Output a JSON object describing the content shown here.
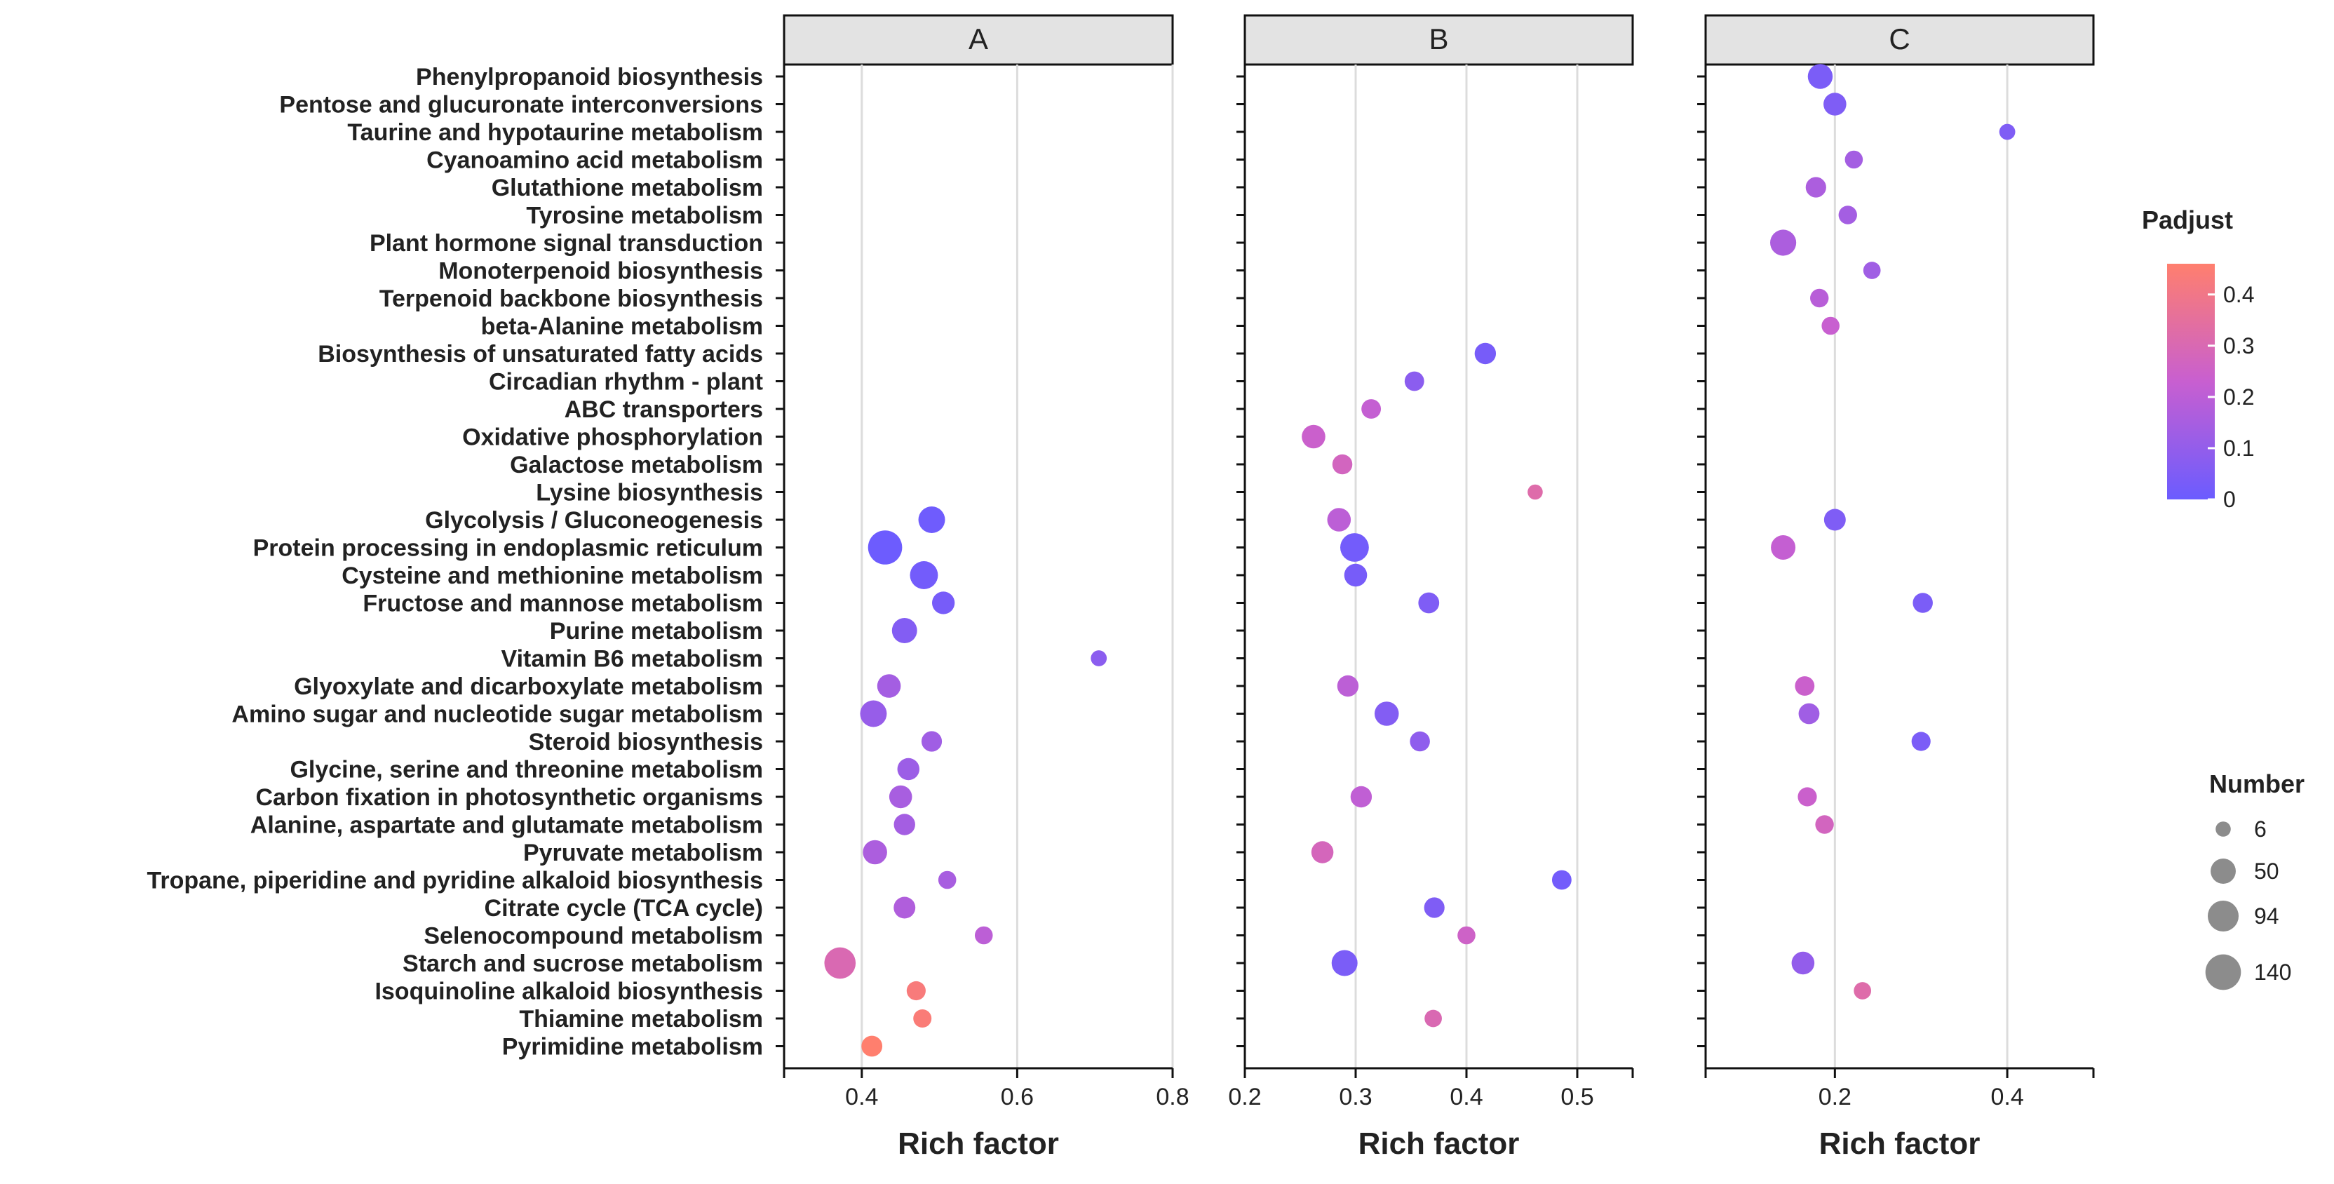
{
  "chart_data": {
    "type": "scatter",
    "pathways": [
      "Phenylpropanoid biosynthesis",
      "Pentose and glucuronate interconversions",
      "Taurine and hypotaurine metabolism",
      "Cyanoamino acid metabolism",
      "Glutathione metabolism",
      "Tyrosine metabolism",
      "Plant hormone signal transduction",
      "Monoterpenoid biosynthesis",
      "Terpenoid backbone biosynthesis",
      "beta-Alanine metabolism",
      "Biosynthesis of unsaturated fatty acids",
      "Circadian rhythm - plant",
      "ABC transporters",
      "Oxidative phosphorylation",
      "Galactose metabolism",
      "Lysine biosynthesis",
      "Glycolysis / Gluconeogenesis",
      "Protein processing in endoplasmic reticulum",
      "Cysteine and methionine metabolism",
      "Fructose and mannose metabolism",
      "Purine metabolism",
      "Vitamin B6 metabolism",
      "Glyoxylate and dicarboxylate metabolism",
      "Amino sugar and nucleotide sugar metabolism",
      "Steroid biosynthesis",
      "Glycine, serine and threonine metabolism",
      "Carbon fixation in photosynthetic organisms",
      "Alanine, aspartate and glutamate metabolism",
      "Pyruvate metabolism",
      "Tropane, piperidine and pyridine alkaloid biosynthesis",
      "Citrate cycle (TCA cycle)",
      "Selenocompound metabolism",
      "Starch and sucrose metabolism",
      "Isoquinoline alkaloid biosynthesis",
      "Thiamine metabolism",
      "Pyrimidine metabolism"
    ],
    "panels": [
      {
        "label": "A",
        "xlabel": "Rich factor",
        "xlim": [
          0.3,
          0.8
        ],
        "ticks": [
          0.4,
          0.6,
          0.8
        ],
        "tick_labels": [
          "0.4",
          "0.6",
          "0.8"
        ],
        "points": [
          {
            "pathway": "Glycolysis / Gluconeogenesis",
            "x": 0.49,
            "number": 60,
            "padjust": 0.01
          },
          {
            "pathway": "Protein processing in endoplasmic reticulum",
            "x": 0.43,
            "number": 125,
            "padjust": 0.005
          },
          {
            "pathway": "Cysteine and methionine metabolism",
            "x": 0.48,
            "number": 70,
            "padjust": 0.02
          },
          {
            "pathway": "Fructose and mannose metabolism",
            "x": 0.505,
            "number": 35,
            "padjust": 0.03
          },
          {
            "pathway": "Purine metabolism",
            "x": 0.455,
            "number": 50,
            "padjust": 0.06
          },
          {
            "pathway": "Vitamin B6 metabolism",
            "x": 0.705,
            "number": 8,
            "padjust": 0.08
          },
          {
            "pathway": "Glyoxylate and dicarboxylate metabolism",
            "x": 0.435,
            "number": 40,
            "padjust": 0.14
          },
          {
            "pathway": "Amino sugar and nucleotide sugar metabolism",
            "x": 0.415,
            "number": 60,
            "padjust": 0.11
          },
          {
            "pathway": "Steroid biosynthesis",
            "x": 0.49,
            "number": 24,
            "padjust": 0.13
          },
          {
            "pathway": "Glycine, serine and threonine metabolism",
            "x": 0.46,
            "number": 32,
            "padjust": 0.12
          },
          {
            "pathway": "Carbon fixation in photosynthetic organisms",
            "x": 0.45,
            "number": 36,
            "padjust": 0.15
          },
          {
            "pathway": "Alanine, aspartate and glutamate metabolism",
            "x": 0.455,
            "number": 28,
            "padjust": 0.14
          },
          {
            "pathway": "Pyruvate metabolism",
            "x": 0.417,
            "number": 44,
            "padjust": 0.16
          },
          {
            "pathway": "Tropane, piperidine and pyridine alkaloid biosynthesis",
            "x": 0.51,
            "number": 14,
            "padjust": 0.15
          },
          {
            "pathway": "Citrate cycle (TCA cycle)",
            "x": 0.455,
            "number": 30,
            "padjust": 0.17
          },
          {
            "pathway": "Selenocompound metabolism",
            "x": 0.557,
            "number": 14,
            "padjust": 0.2
          },
          {
            "pathway": "Starch and sucrose metabolism",
            "x": 0.372,
            "number": 98,
            "padjust": 0.3
          },
          {
            "pathway": "Isoquinoline alkaloid biosynthesis",
            "x": 0.47,
            "number": 18,
            "padjust": 0.43
          },
          {
            "pathway": "Thiamine metabolism",
            "x": 0.478,
            "number": 15,
            "padjust": 0.44
          },
          {
            "pathway": "Pyrimidine metabolism",
            "x": 0.413,
            "number": 26,
            "padjust": 0.46
          }
        ]
      },
      {
        "label": "B",
        "xlabel": "Rich factor",
        "xlim": [
          0.2,
          0.55
        ],
        "ticks": [
          0.2,
          0.3,
          0.4,
          0.5
        ],
        "tick_labels": [
          "0.2",
          "0.3",
          "0.4",
          "0.5"
        ],
        "points": [
          {
            "pathway": "Biosynthesis of unsaturated fatty acids",
            "x": 0.417,
            "number": 28,
            "padjust": 0.03
          },
          {
            "pathway": "Circadian rhythm - plant",
            "x": 0.353,
            "number": 20,
            "padjust": 0.08
          },
          {
            "pathway": "ABC transporters",
            "x": 0.314,
            "number": 20,
            "padjust": 0.22
          },
          {
            "pathway": "Oxidative phosphorylation",
            "x": 0.262,
            "number": 40,
            "padjust": 0.24
          },
          {
            "pathway": "Galactose metabolism",
            "x": 0.288,
            "number": 22,
            "padjust": 0.27
          },
          {
            "pathway": "Lysine biosynthesis",
            "x": 0.462,
            "number": 6,
            "padjust": 0.32
          },
          {
            "pathway": "Glycolysis / Gluconeogenesis",
            "x": 0.285,
            "number": 40,
            "padjust": 0.2
          },
          {
            "pathway": "Protein processing in endoplasmic reticulum",
            "x": 0.299,
            "number": 75,
            "padjust": 0.02
          },
          {
            "pathway": "Cysteine and methionine metabolism",
            "x": 0.3,
            "number": 36,
            "padjust": 0.03
          },
          {
            "pathway": "Fructose and mannose metabolism",
            "x": 0.366,
            "number": 26,
            "padjust": 0.05
          },
          {
            "pathway": "Glyoxylate and dicarboxylate metabolism",
            "x": 0.293,
            "number": 28,
            "padjust": 0.2
          },
          {
            "pathway": "Amino sugar and nucleotide sugar metabolism",
            "x": 0.328,
            "number": 44,
            "padjust": 0.06
          },
          {
            "pathway": "Steroid biosynthesis",
            "x": 0.358,
            "number": 22,
            "padjust": 0.09
          },
          {
            "pathway": "Carbon fixation in photosynthetic organisms",
            "x": 0.305,
            "number": 28,
            "padjust": 0.21
          },
          {
            "pathway": "Pyruvate metabolism",
            "x": 0.27,
            "number": 32,
            "padjust": 0.28
          },
          {
            "pathway": "Tropane, piperidine and pyridine alkaloid biosynthesis",
            "x": 0.486,
            "number": 20,
            "padjust": 0.02
          },
          {
            "pathway": "Citrate cycle (TCA cycle)",
            "x": 0.371,
            "number": 24,
            "padjust": 0.05
          },
          {
            "pathway": "Selenocompound metabolism",
            "x": 0.4,
            "number": 14,
            "padjust": 0.25
          },
          {
            "pathway": "Starch and sucrose metabolism",
            "x": 0.29,
            "number": 55,
            "padjust": 0.04
          },
          {
            "pathway": "Thiamine metabolism",
            "x": 0.37,
            "number": 12,
            "padjust": 0.3
          }
        ]
      },
      {
        "label": "C",
        "xlabel": "Rich factor",
        "xlim": [
          0.05,
          0.5
        ],
        "ticks": [
          0.2,
          0.4
        ],
        "tick_labels": [
          "0.2",
          "0.4"
        ],
        "points": [
          {
            "pathway": "Phenylpropanoid biosynthesis",
            "x": 0.183,
            "number": 48,
            "padjust": 0.04
          },
          {
            "pathway": "Pentose and glucuronate interconversions",
            "x": 0.2,
            "number": 36,
            "padjust": 0.05
          },
          {
            "pathway": "Taurine and hypotaurine metabolism",
            "x": 0.4,
            "number": 8,
            "padjust": 0.05
          },
          {
            "pathway": "Cyanoamino acid metabolism",
            "x": 0.222,
            "number": 14,
            "padjust": 0.14
          },
          {
            "pathway": "Glutathione metabolism",
            "x": 0.178,
            "number": 24,
            "padjust": 0.16
          },
          {
            "pathway": "Tyrosine metabolism",
            "x": 0.215,
            "number": 16,
            "padjust": 0.14
          },
          {
            "pathway": "Plant hormone signal transduction",
            "x": 0.14,
            "number": 56,
            "padjust": 0.16
          },
          {
            "pathway": "Monoterpenoid biosynthesis",
            "x": 0.243,
            "number": 12,
            "padjust": 0.13
          },
          {
            "pathway": "Terpenoid backbone biosynthesis",
            "x": 0.182,
            "number": 16,
            "padjust": 0.19
          },
          {
            "pathway": "beta-Alanine metabolism",
            "x": 0.195,
            "number": 14,
            "padjust": 0.23
          },
          {
            "pathway": "Glycolysis / Gluconeogenesis",
            "x": 0.2,
            "number": 30,
            "padjust": 0.05
          },
          {
            "pathway": "Protein processing in endoplasmic reticulum",
            "x": 0.14,
            "number": 46,
            "padjust": 0.22
          },
          {
            "pathway": "Fructose and mannose metabolism",
            "x": 0.302,
            "number": 22,
            "padjust": 0.04
          },
          {
            "pathway": "Glyoxylate and dicarboxylate metabolism",
            "x": 0.165,
            "number": 20,
            "padjust": 0.24
          },
          {
            "pathway": "Amino sugar and nucleotide sugar metabolism",
            "x": 0.17,
            "number": 26,
            "padjust": 0.13
          },
          {
            "pathway": "Steroid biosynthesis",
            "x": 0.3,
            "number": 18,
            "padjust": 0.04
          },
          {
            "pathway": "Carbon fixation in photosynthetic organisms",
            "x": 0.168,
            "number": 18,
            "padjust": 0.24
          },
          {
            "pathway": "Alanine, aspartate and glutamate metabolism",
            "x": 0.188,
            "number": 16,
            "padjust": 0.27
          },
          {
            "pathway": "Starch and sucrose metabolism",
            "x": 0.163,
            "number": 36,
            "padjust": 0.1
          },
          {
            "pathway": "Isoquinoline alkaloid biosynthesis",
            "x": 0.232,
            "number": 12,
            "padjust": 0.32
          }
        ]
      }
    ],
    "color_legend": {
      "title": "Padjust",
      "range": [
        0,
        0.46
      ],
      "ticks": [
        0,
        0.1,
        0.2,
        0.3,
        0.4
      ],
      "tick_labels": [
        "0",
        "0.1",
        "0.2",
        "0.3",
        "0.4"
      ],
      "low_color": "#6b5cff",
      "mid_color": "#c85fd0",
      "high_color": "#ff7f6e"
    },
    "size_legend": {
      "title": "Number",
      "values": [
        6,
        50,
        94,
        140
      ],
      "labels": [
        "6",
        "50",
        "94",
        "140"
      ]
    },
    "style": {
      "strip_fill": "#e3e3e3",
      "panel_border": "#111111",
      "grid_color": "#dcdcdc",
      "legend_point_color": "#8c8c8c"
    }
  }
}
